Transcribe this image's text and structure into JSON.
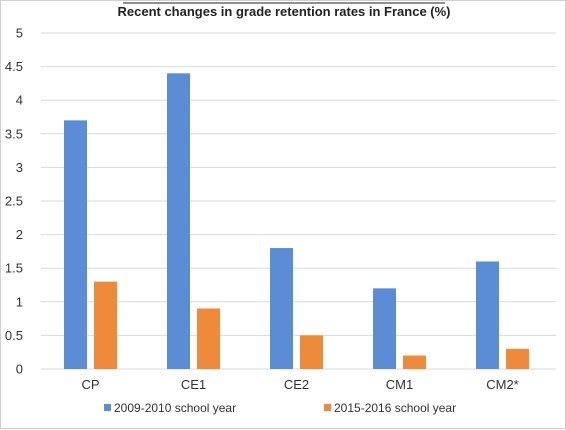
{
  "chart_data": {
    "type": "bar",
    "title": "Recent changes in grade retention rates in France (%)",
    "xlabel": "",
    "ylabel": "",
    "categories": [
      "CP",
      "CE1",
      "CE2",
      "CM1",
      "CM2*"
    ],
    "series": [
      {
        "name": "2009-2010 school year",
        "values": [
          3.7,
          4.4,
          1.8,
          1.2,
          1.6
        ],
        "color": "#5B8DD6"
      },
      {
        "name": "2015-2016 school year",
        "values": [
          1.3,
          0.9,
          0.5,
          0.2,
          0.3
        ],
        "color": "#EE8A3A"
      }
    ],
    "ylim": [
      0,
      5
    ],
    "yticks": [
      "0",
      "0.5",
      "1",
      "1.5",
      "2",
      "2.5",
      "3",
      "3.5",
      "4",
      "4.5",
      "5"
    ],
    "grid": true,
    "legend_position": "bottom",
    "gridline_color": "#d9d9d9"
  }
}
